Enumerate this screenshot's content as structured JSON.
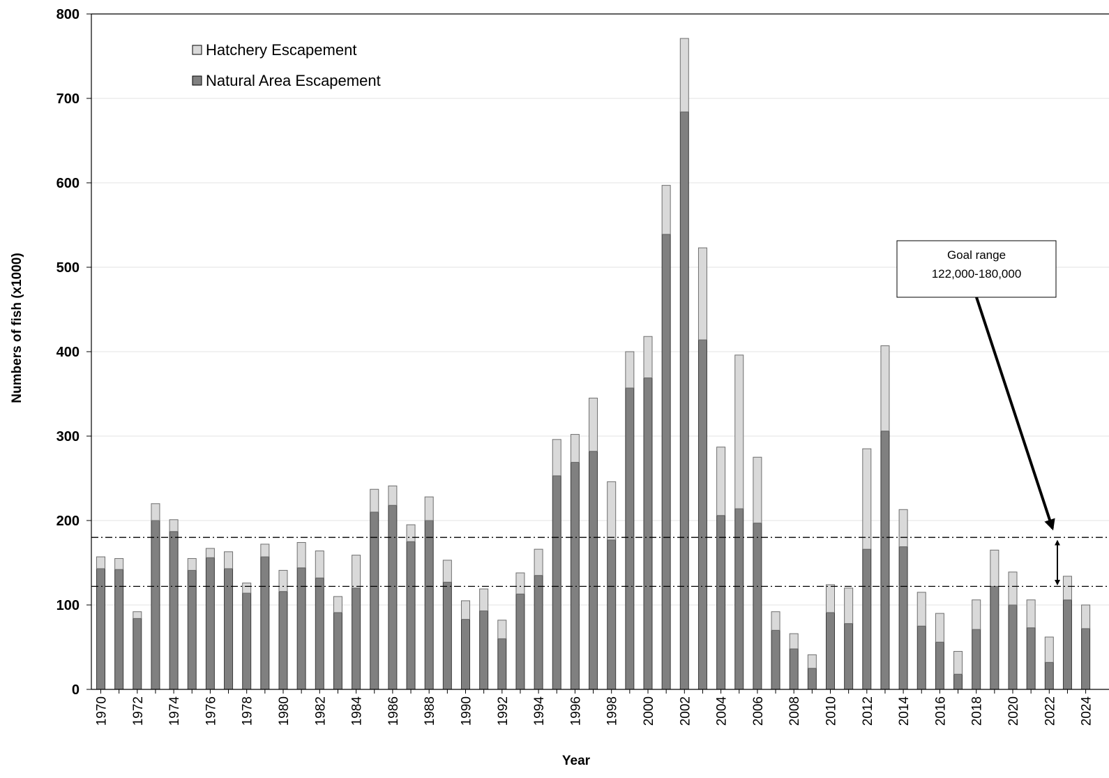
{
  "chart_data": {
    "type": "bar",
    "stacked": true,
    "title": "",
    "xlabel": "Year",
    "ylabel": "Numbers of fish (x1000)",
    "ylim": [
      0,
      800
    ],
    "yticks": [
      0,
      100,
      200,
      300,
      400,
      500,
      600,
      700,
      800
    ],
    "grid": true,
    "legend_placement": "top-left",
    "years": [
      1970,
      1971,
      1972,
      1973,
      1974,
      1975,
      1976,
      1977,
      1978,
      1979,
      1980,
      1981,
      1982,
      1983,
      1984,
      1985,
      1986,
      1987,
      1988,
      1989,
      1990,
      1991,
      1992,
      1993,
      1994,
      1995,
      1996,
      1997,
      1998,
      1999,
      2000,
      2001,
      2002,
      2003,
      2004,
      2005,
      2006,
      2007,
      2008,
      2009,
      2010,
      2011,
      2012,
      2013,
      2014,
      2015,
      2016,
      2017,
      2018,
      2019,
      2020,
      2021,
      2022,
      2023,
      2024
    ],
    "x_tick_labels": [
      "1970",
      "",
      "1972",
      "",
      "1974",
      "",
      "1976",
      "",
      "1978",
      "",
      "1980",
      "",
      "1982",
      "",
      "1984",
      "",
      "1986",
      "",
      "1988",
      "",
      "1990",
      "",
      "1992",
      "",
      "1994",
      "",
      "1996",
      "",
      "1998",
      "",
      "2000",
      "",
      "2002",
      "",
      "2004",
      "",
      "2006",
      "",
      "2008",
      "",
      "2010",
      "",
      "2012",
      "",
      "2014",
      "",
      "2016",
      "",
      "2018",
      "",
      "2020",
      "",
      "2022",
      "",
      "2024"
    ],
    "series": [
      {
        "name": "Natural Area Escapement",
        "color": "#808080",
        "values": [
          143,
          142,
          84,
          200,
          187,
          141,
          156,
          143,
          114,
          157,
          116,
          144,
          132,
          91,
          120,
          210,
          218,
          175,
          200,
          127,
          83,
          93,
          60,
          113,
          135,
          253,
          269,
          282,
          177,
          357,
          369,
          539,
          684,
          414,
          206,
          214,
          197,
          70,
          48,
          25,
          91,
          78,
          166,
          306,
          169,
          75,
          56,
          18,
          71,
          122,
          100,
          73,
          32,
          106,
          72
        ]
      },
      {
        "name": "Hatchery Escapement",
        "color": "#d9d9d9",
        "values": [
          14,
          13,
          8,
          20,
          14,
          14,
          11,
          20,
          12,
          15,
          25,
          30,
          32,
          19,
          39,
          27,
          23,
          20,
          28,
          26,
          22,
          26,
          22,
          25,
          31,
          43,
          33,
          63,
          69,
          43,
          49,
          58,
          87,
          109,
          81,
          182,
          78,
          22,
          18,
          16,
          33,
          42,
          119,
          101,
          44,
          40,
          34,
          27,
          35,
          43,
          39,
          33,
          30,
          28,
          28
        ]
      }
    ],
    "goal_lines": [
      180,
      122
    ],
    "annotation": {
      "line1": "Goal range",
      "line2": "122,000-180,000"
    }
  },
  "legend": {
    "hatchery_label": "Hatchery Escapement",
    "natural_label": "Natural Area Escapement"
  }
}
